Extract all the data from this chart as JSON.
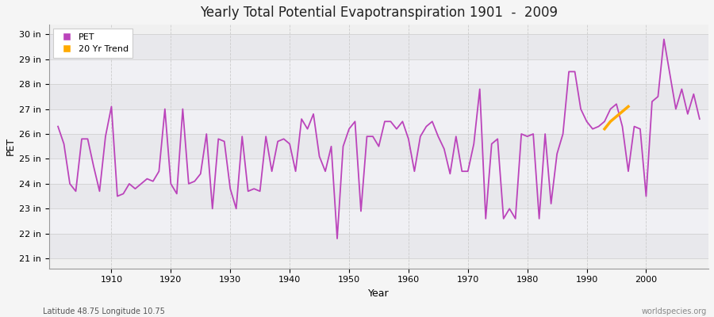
{
  "title": "Yearly Total Potential Evapotranspiration 1901  -  2009",
  "xlabel": "Year",
  "ylabel": "PET",
  "footnote_left": "Latitude 48.75 Longitude 10.75",
  "footnote_right": "worldspecies.org",
  "ytick_labels": [
    "21 in",
    "22 in",
    "23 in",
    "24 in",
    "25 in",
    "26 in",
    "27 in",
    "28 in",
    "29 in",
    "30 in"
  ],
  "ytick_values": [
    21,
    22,
    23,
    24,
    25,
    26,
    27,
    28,
    29,
    30
  ],
  "ylim": [
    20.6,
    30.4
  ],
  "xlim": [
    1899.5,
    2010.5
  ],
  "pet_color": "#bb44bb",
  "trend_color": "#ffaa00",
  "bg_color": "#f5f5f5",
  "band_color_light": "#f0f0f0",
  "band_color_dark": "#e4e4e8",
  "legend_entries": [
    "PET",
    "20 Yr Trend"
  ],
  "years": [
    1901,
    1902,
    1903,
    1904,
    1905,
    1906,
    1907,
    1908,
    1909,
    1910,
    1911,
    1912,
    1913,
    1914,
    1915,
    1916,
    1917,
    1918,
    1919,
    1920,
    1921,
    1922,
    1923,
    1924,
    1925,
    1926,
    1927,
    1928,
    1929,
    1930,
    1931,
    1932,
    1933,
    1934,
    1935,
    1936,
    1937,
    1938,
    1939,
    1940,
    1941,
    1942,
    1943,
    1944,
    1945,
    1946,
    1947,
    1948,
    1949,
    1950,
    1951,
    1952,
    1953,
    1954,
    1955,
    1956,
    1957,
    1958,
    1959,
    1960,
    1961,
    1962,
    1963,
    1964,
    1965,
    1966,
    1967,
    1968,
    1969,
    1970,
    1971,
    1972,
    1973,
    1974,
    1975,
    1976,
    1977,
    1978,
    1979,
    1980,
    1981,
    1982,
    1983,
    1984,
    1985,
    1986,
    1987,
    1988,
    1989,
    1990,
    1991,
    1992,
    1993,
    1994,
    1995,
    1996,
    1997,
    1998,
    1999,
    2000,
    2001,
    2002,
    2003,
    2004,
    2005,
    2006,
    2007,
    2008,
    2009
  ],
  "pet_values": [
    26.3,
    25.6,
    24.0,
    23.7,
    25.8,
    25.8,
    24.7,
    23.7,
    25.9,
    27.1,
    23.5,
    23.6,
    24.0,
    23.8,
    24.0,
    24.2,
    24.1,
    24.5,
    27.0,
    24.0,
    23.6,
    27.0,
    24.0,
    24.1,
    24.4,
    26.0,
    23.0,
    25.8,
    25.7,
    23.8,
    23.0,
    25.9,
    23.7,
    23.8,
    23.7,
    25.9,
    24.5,
    25.7,
    25.8,
    25.6,
    24.5,
    26.6,
    26.2,
    26.8,
    25.1,
    24.5,
    25.5,
    21.8,
    25.5,
    26.2,
    26.5,
    22.9,
    25.9,
    25.9,
    25.5,
    26.5,
    26.5,
    26.2,
    26.5,
    25.8,
    24.5,
    25.9,
    26.3,
    26.5,
    25.9,
    25.4,
    24.4,
    25.9,
    24.5,
    24.5,
    25.6,
    27.8,
    22.6,
    25.6,
    25.8,
    22.6,
    23.0,
    22.6,
    26.0,
    25.9,
    26.0,
    22.6,
    26.0,
    23.2,
    25.2,
    26.0,
    28.5,
    28.5,
    27.0,
    26.5,
    26.2,
    26.3,
    26.5,
    27.0,
    27.2,
    26.3,
    24.5,
    26.3,
    26.2,
    23.5,
    27.3,
    27.5,
    29.8,
    28.4,
    27.0,
    27.8,
    26.8,
    27.6,
    26.6
  ],
  "trend_years": [
    1993,
    1994,
    1995,
    1996,
    1997
  ],
  "trend_values": [
    26.2,
    26.5,
    26.7,
    26.9,
    27.1
  ]
}
